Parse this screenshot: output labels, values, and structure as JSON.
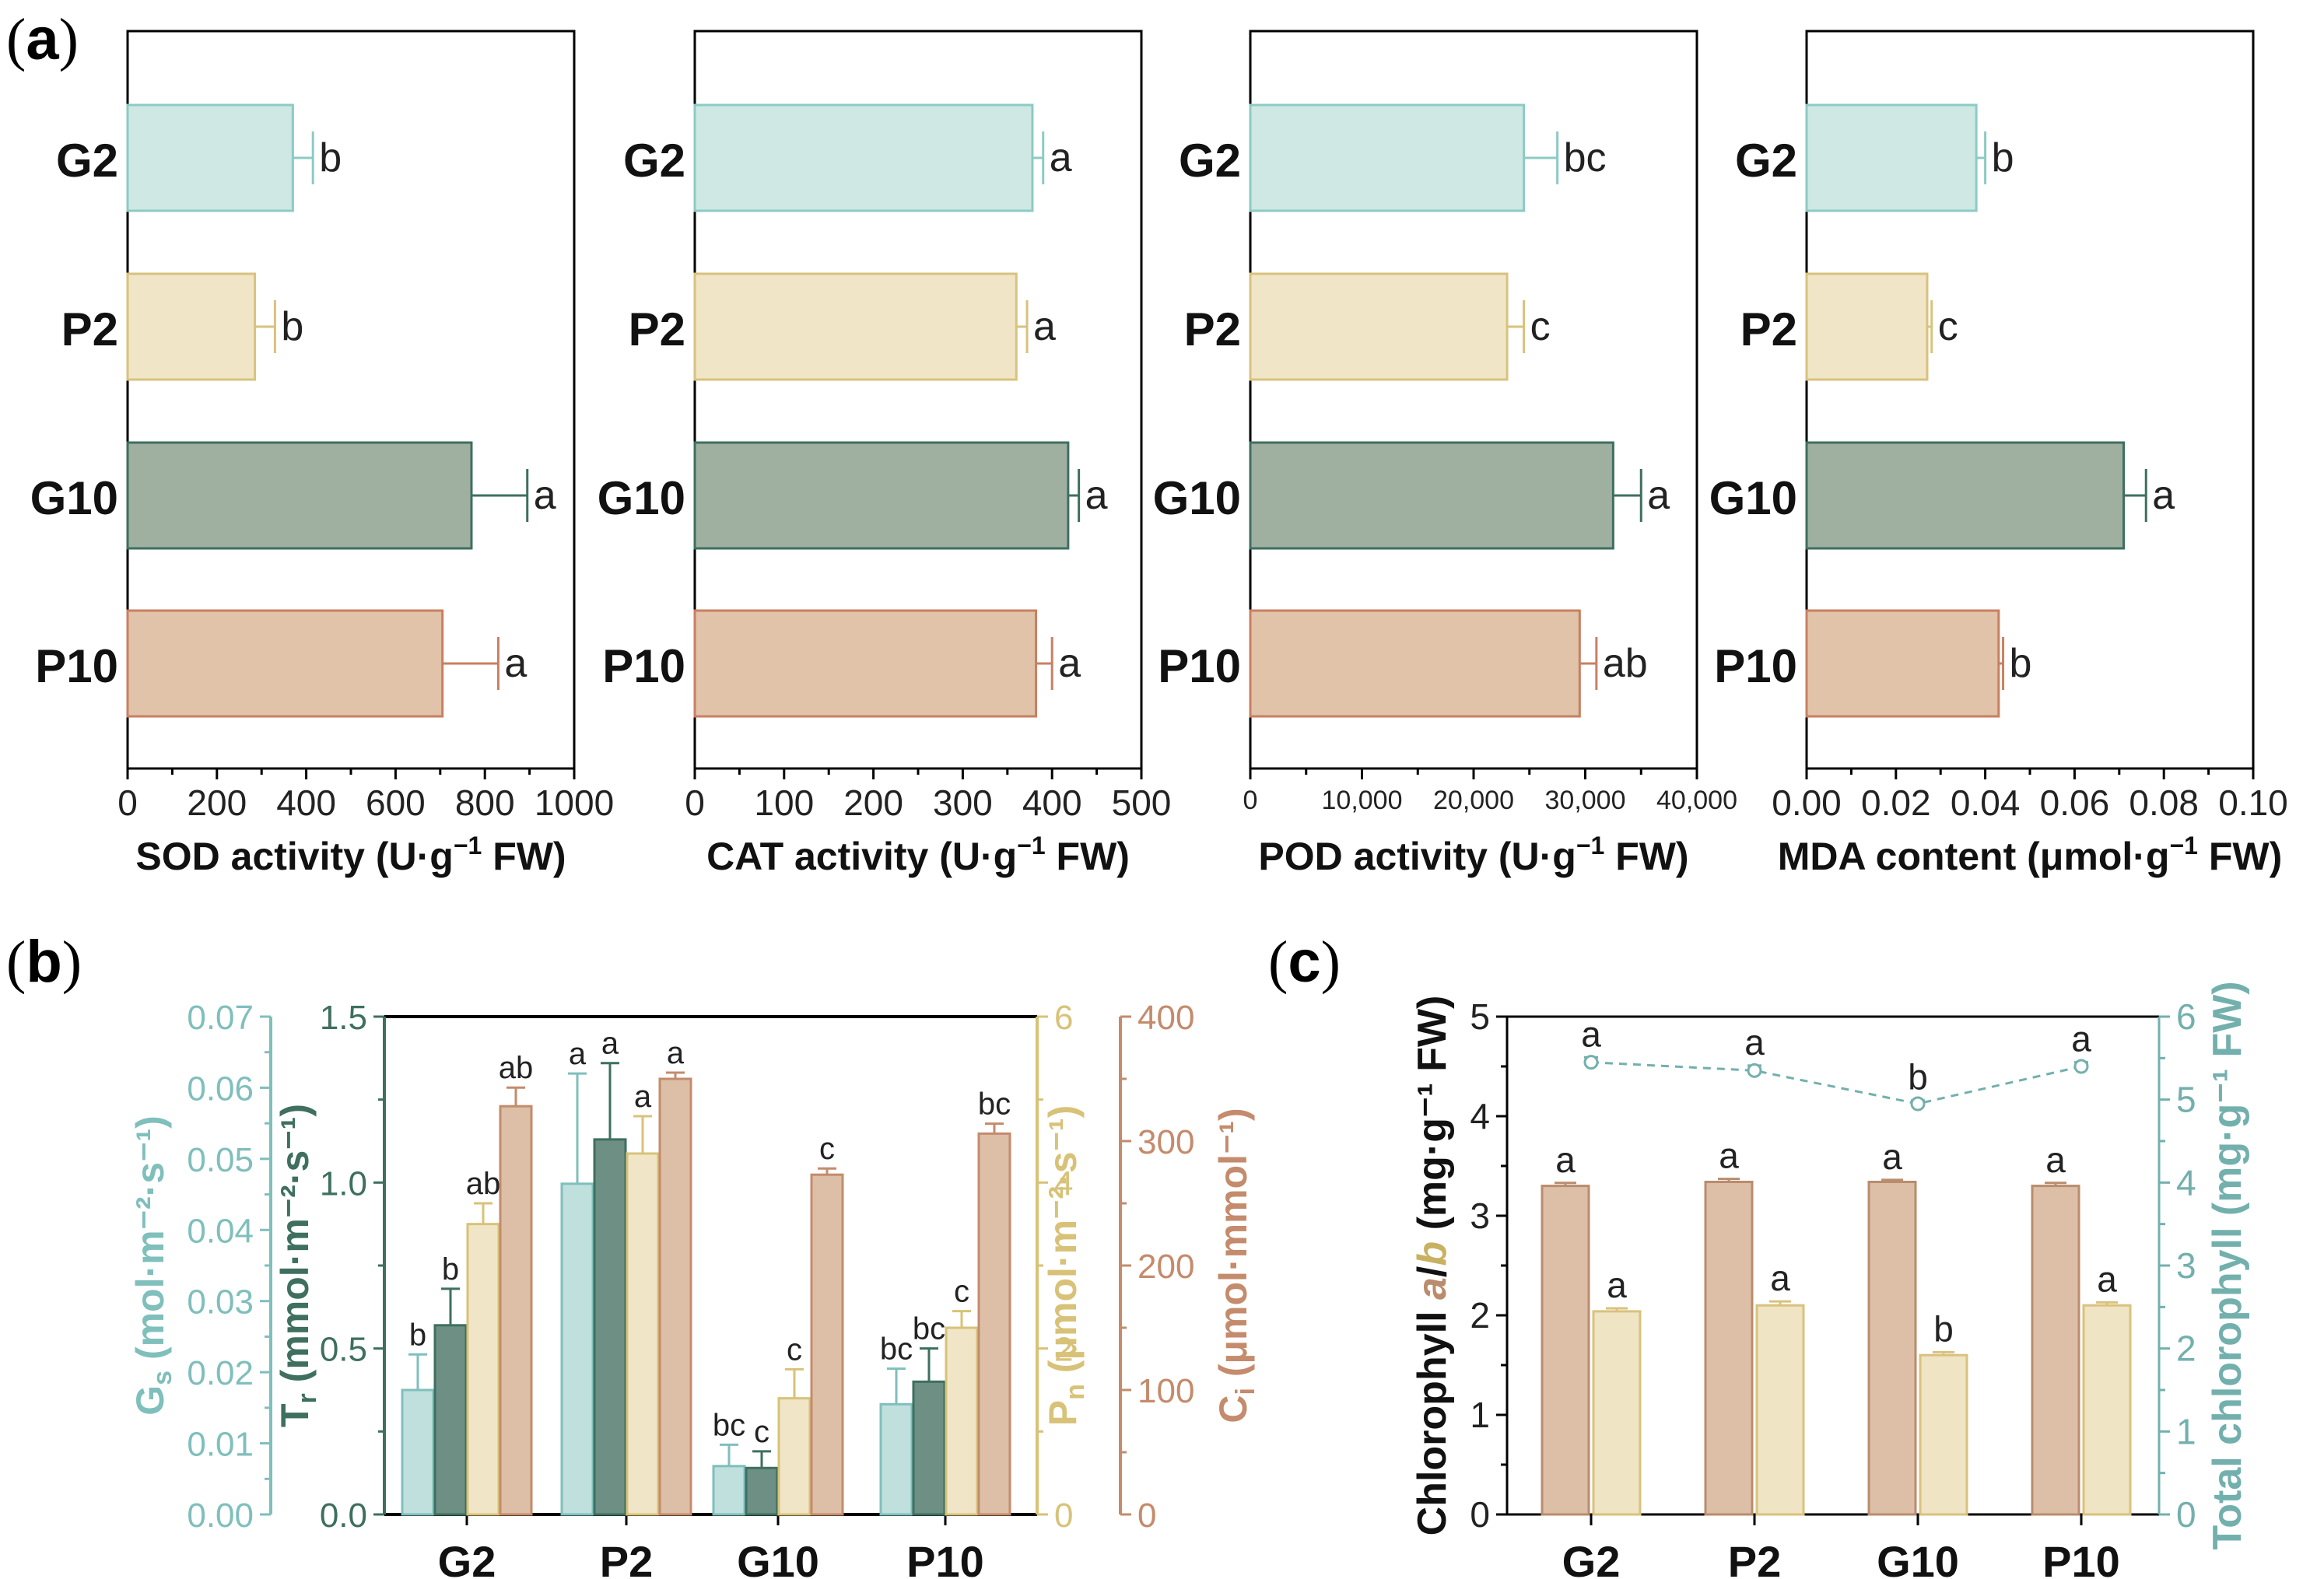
{
  "colors": {
    "G2": {
      "fill": "#cfe8e4",
      "stroke": "#8ccbc4"
    },
    "P2": {
      "fill": "#f0e6c7",
      "stroke": "#d9c27e"
    },
    "G10": {
      "fill": "#9fb0a1",
      "stroke": "#3e6f5f"
    },
    "P10": {
      "fill": "#e0c3a8",
      "stroke": "#c97f62"
    },
    "Gs": "#7fbfbc",
    "Tr": "#3e6f5f",
    "Pn": "#d8c278",
    "Ci": "#c48b6c",
    "chlA": "#dcbfa6",
    "chlA_edge": "#b98c6d",
    "chlB": "#efe4c4",
    "chlB_edge": "#d9c27e",
    "total": "#73b0ad"
  },
  "panels": {
    "a": {
      "paren_open": "(",
      "letter": "a",
      "paren_close": ")"
    },
    "b": {
      "paren_open": "(",
      "letter": "b",
      "paren_close": ")"
    },
    "c": {
      "paren_open": "(",
      "letter": "c",
      "paren_close": ")"
    }
  },
  "chart_data": [
    {
      "id": "SOD",
      "type": "bar",
      "orientation": "horizontal",
      "categories": [
        "G2",
        "P2",
        "G10",
        "P10"
      ],
      "values": [
        370,
        285,
        770,
        705
      ],
      "errors": [
        45,
        45,
        125,
        125
      ],
      "letters": [
        "b",
        "b",
        "a",
        "a"
      ],
      "xlim": [
        0,
        1000
      ],
      "ticks": [
        0,
        200,
        400,
        600,
        800,
        1000
      ],
      "tick_labels": [
        "0",
        "200",
        "400",
        "600",
        "800",
        "1000"
      ],
      "xlabel": {
        "pre": "SOD activity (U·g",
        "sup": "−1",
        "post": " FW)"
      }
    },
    {
      "id": "CAT",
      "type": "bar",
      "orientation": "horizontal",
      "categories": [
        "G2",
        "P2",
        "G10",
        "P10"
      ],
      "values": [
        378,
        360,
        418,
        382
      ],
      "errors": [
        12,
        12,
        12,
        18
      ],
      "letters": [
        "a",
        "a",
        "a",
        "a"
      ],
      "xlim": [
        0,
        500
      ],
      "ticks": [
        0,
        100,
        200,
        300,
        400,
        500
      ],
      "tick_labels": [
        "0",
        "100",
        "200",
        "300",
        "400",
        "500"
      ],
      "xlabel": {
        "pre": "CAT activity (U·g",
        "sup": "−1",
        "post": " FW)"
      }
    },
    {
      "id": "POD",
      "type": "bar",
      "orientation": "horizontal",
      "categories": [
        "G2",
        "P2",
        "G10",
        "P10"
      ],
      "values": [
        24500,
        23000,
        32500,
        29500
      ],
      "errors": [
        3000,
        1500,
        2500,
        1500
      ],
      "letters": [
        "bc",
        "c",
        "a",
        "ab"
      ],
      "xlim": [
        0,
        40000
      ],
      "ticks": [
        0,
        10000,
        20000,
        30000,
        40000
      ],
      "tick_labels": [
        "0",
        "10,000",
        "20,000",
        "30,000",
        "40,000"
      ],
      "xlabel": {
        "pre": "POD activity (U·g",
        "sup": "−1",
        "post": " FW)"
      }
    },
    {
      "id": "MDA",
      "type": "bar",
      "orientation": "horizontal",
      "categories": [
        "G2",
        "P2",
        "G10",
        "P10"
      ],
      "values": [
        0.038,
        0.027,
        0.071,
        0.043
      ],
      "errors": [
        0.002,
        0.001,
        0.005,
        0.001
      ],
      "letters": [
        "b",
        "c",
        "a",
        "b"
      ],
      "xlim": [
        0,
        0.1
      ],
      "ticks": [
        0,
        0.02,
        0.04,
        0.06,
        0.08,
        0.1
      ],
      "tick_labels": [
        "0.00",
        "0.02",
        "0.04",
        "0.06",
        "0.08",
        "0.10"
      ],
      "xlabel": {
        "pre": "MDA content (μmol·g",
        "sup": "−1",
        "post": " FW)"
      }
    },
    {
      "id": "b",
      "type": "bar",
      "categories": [
        "G2",
        "P2",
        "G10",
        "P10"
      ],
      "series": [
        {
          "key": "Gs",
          "name": "Gs",
          "values": [
            0.0175,
            0.0465,
            0.0068,
            0.0155
          ],
          "errors": [
            0.005,
            0.0155,
            0.003,
            0.005
          ],
          "letters": [
            "b",
            "a",
            "bc",
            "bc"
          ],
          "ylim": [
            0,
            0.07
          ],
          "ticks": [
            0,
            0.01,
            0.02,
            0.03,
            0.04,
            0.05,
            0.06,
            0.07
          ],
          "tick_labels": [
            "0.00",
            "0.01",
            "0.02",
            "0.03",
            "0.04",
            "0.05",
            "0.06",
            "0.07"
          ],
          "ylabel": {
            "main": "G",
            "sub": "s",
            "unit": " (mol·m⁻²·s⁻¹)"
          }
        },
        {
          "key": "Tr",
          "name": "Tr",
          "values": [
            0.57,
            1.13,
            0.14,
            0.4
          ],
          "errors": [
            0.11,
            0.23,
            0.05,
            0.1
          ],
          "letters": [
            "b",
            "a",
            "c",
            "bc"
          ],
          "ylim": [
            0,
            1.5
          ],
          "ticks": [
            0,
            0.5,
            1.0,
            1.5
          ],
          "tick_labels": [
            "0.0",
            "0.5",
            "1.0",
            "1.5"
          ],
          "ylabel": {
            "main": "T",
            "sub": "r",
            "unit": " (mmol·m⁻²·s⁻¹)"
          }
        },
        {
          "key": "Pn",
          "name": "Pn",
          "values": [
            3.5,
            4.35,
            1.4,
            2.25
          ],
          "errors": [
            0.25,
            0.45,
            0.35,
            0.2
          ],
          "letters": [
            "ab",
            "a",
            "c",
            "c"
          ],
          "ylim": [
            0,
            6
          ],
          "ticks": [
            0,
            2,
            4,
            6
          ],
          "tick_labels": [
            "0",
            "2",
            "4",
            "6"
          ],
          "ylabel": {
            "main": "P",
            "sub": "n",
            "unit": " (μmol·m⁻²·s⁻¹)"
          }
        },
        {
          "key": "Ci",
          "name": "Ci",
          "values": [
            328,
            350,
            273,
            306
          ],
          "errors": [
            15,
            5,
            5,
            8
          ],
          "letters": [
            "ab",
            "a",
            "c",
            "bc"
          ],
          "ylim": [
            0,
            400
          ],
          "ticks": [
            0,
            100,
            200,
            300,
            400
          ],
          "tick_labels": [
            "0",
            "100",
            "200",
            "300",
            "400"
          ],
          "ylabel": {
            "main": "C",
            "sub": "i",
            "unit": " (μmol·mmol⁻¹)"
          }
        }
      ]
    },
    {
      "id": "c",
      "type": "bar",
      "categories": [
        "G2",
        "P2",
        "G10",
        "P10"
      ],
      "series": [
        {
          "key": "chlA",
          "name": "Chlorophyll a",
          "values": [
            3.3,
            3.34,
            3.34,
            3.3
          ],
          "errors": [
            0.03,
            0.03,
            0.02,
            0.03
          ],
          "letters": [
            "a",
            "a",
            "a",
            "a"
          ]
        },
        {
          "key": "chlB",
          "name": "Chlorophyll b",
          "values": [
            2.04,
            2.1,
            1.6,
            2.1
          ],
          "errors": [
            0.03,
            0.04,
            0.03,
            0.03
          ],
          "letters": [
            "a",
            "a",
            "b",
            "a"
          ]
        },
        {
          "key": "total",
          "name": "Total chlorophyll",
          "type": "line",
          "values": [
            5.45,
            5.35,
            4.95,
            5.4
          ],
          "errors": [
            0.06,
            0.06,
            0.04,
            0.05
          ],
          "letters": [
            "a",
            "a",
            "b",
            "a"
          ]
        }
      ],
      "ylim_left": [
        0,
        5
      ],
      "ticks_left": [
        0,
        1,
        2,
        3,
        4,
        5
      ],
      "tick_labels_left": [
        "0",
        "1",
        "2",
        "3",
        "4",
        "5"
      ],
      "ylim_right": [
        0,
        6
      ],
      "ticks_right": [
        0,
        1,
        2,
        3,
        4,
        5,
        6
      ],
      "tick_labels_right": [
        "0",
        "1",
        "2",
        "3",
        "4",
        "5",
        "6"
      ],
      "ylabel_left": {
        "pre": "Chlorophyll ",
        "a": "a",
        "slash": "/",
        "b": "b",
        "post": " (mg·g⁻¹ FW)"
      },
      "ylabel_right": "Total chlorophyll (mg·g⁻¹ FW)"
    }
  ]
}
